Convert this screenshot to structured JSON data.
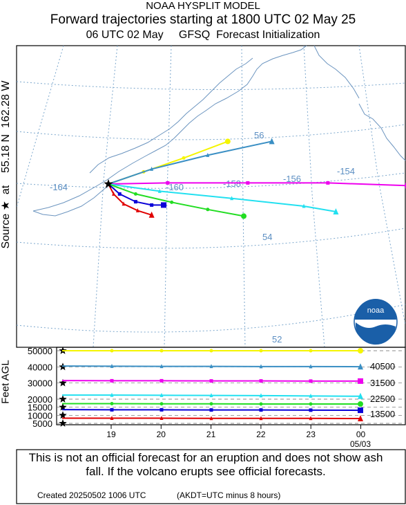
{
  "header": {
    "title": "NOAA HYSPLIT MODEL",
    "subtitle": "Forward trajectories starting at 1800 UTC 02 May 25",
    "init_line": "06 UTC 02 May     GFSQ  Forecast Initialization"
  },
  "source_label": "Source ★  at    55.18 N  162.28 W",
  "map": {
    "lon_labels": [
      "-164",
      "-160",
      "-158",
      "-156",
      "-154"
    ],
    "lat_labels": [
      "56",
      "54",
      "52"
    ],
    "logo_text": "noaa"
  },
  "chart_data": {
    "type": "line",
    "ylabel": "Feet AGL",
    "y_ticks": [
      5000,
      10000,
      15000,
      20000,
      30000,
      40000,
      50000
    ],
    "ylim": [
      5000,
      50000
    ],
    "x_ticks": [
      "19",
      "20",
      "21",
      "22",
      "23",
      "00"
    ],
    "x_sublabel": "05/03",
    "right_labels": [
      "40500",
      "31500",
      "22500",
      "13500"
    ],
    "series": [
      {
        "color": "#f5f500",
        "marker": "circle",
        "values": [
          50000,
          50000,
          50000,
          50000,
          50000,
          50000,
          50000
        ]
      },
      {
        "color": "#3a8fc4",
        "marker": "triangle",
        "values": [
          40500,
          40400,
          40300,
          40300,
          40200,
          40200,
          40100
        ]
      },
      {
        "color": "#ee00ee",
        "marker": "square",
        "values": [
          31500,
          31400,
          31400,
          31300,
          31300,
          31200,
          31200
        ]
      },
      {
        "color": "#22e0f0",
        "marker": "triangle",
        "values": [
          22500,
          22500,
          22400,
          22300,
          22200,
          22000,
          21800
        ]
      },
      {
        "color": "#22dd22",
        "marker": "circle",
        "values": [
          17200,
          17200,
          17100,
          17100,
          17000,
          17000,
          17000
        ]
      },
      {
        "color": "#0a00d8",
        "marker": "square",
        "values": [
          13500,
          13400,
          13400,
          13300,
          13300,
          13200,
          13100
        ]
      },
      {
        "color": "#e00000",
        "marker": "triangle",
        "values": [
          8200,
          8200,
          8200,
          8100,
          8100,
          8100,
          8000
        ]
      }
    ]
  },
  "trajectories": [
    {
      "color": "#f5f500",
      "marker": "circle",
      "lon": [
        -162.28,
        -161.4,
        -160.4,
        -159.3
      ],
      "lat": [
        55.18,
        55.4,
        55.65,
        55.95
      ]
    },
    {
      "color": "#3a8fc4",
      "marker": "triangle",
      "lon": [
        -162.28,
        -161.2,
        -159.8,
        -158.2
      ],
      "lat": [
        55.18,
        55.45,
        55.7,
        55.95
      ]
    },
    {
      "color": "#ee00ee",
      "marker": "square",
      "lon": [
        -162.28,
        -160.8,
        -158.8,
        -156.8,
        -154.8
      ],
      "lat": [
        55.18,
        55.2,
        55.2,
        55.2,
        55.15
      ]
    },
    {
      "color": "#22e0f0",
      "marker": "triangle",
      "lon": [
        -162.28,
        -161.0,
        -159.2,
        -157.4,
        -156.6
      ],
      "lat": [
        55.18,
        55.05,
        54.92,
        54.78,
        54.68
      ]
    },
    {
      "color": "#22dd22",
      "marker": "circle",
      "lon": [
        -162.28,
        -161.6,
        -160.7,
        -159.8,
        -158.9
      ],
      "lat": [
        55.18,
        55.0,
        54.85,
        54.72,
        54.6
      ]
    },
    {
      "color": "#0a00d8",
      "marker": "square",
      "lon": [
        -162.28,
        -162.0,
        -161.6,
        -161.2,
        -160.9
      ],
      "lat": [
        55.18,
        55.0,
        54.86,
        54.8,
        54.8
      ]
    },
    {
      "color": "#e00000",
      "marker": "triangle",
      "lon": [
        -162.28,
        -162.15,
        -161.9,
        -161.55,
        -161.2
      ],
      "lat": [
        55.18,
        55.0,
        54.82,
        54.7,
        54.62
      ]
    }
  ],
  "disclaimer": "This is not an official forecast for an eruption and does not show ash fall. If the volcano erupts see official forecasts.",
  "footer": {
    "created": "Created 20250502 1006 UTC",
    "tz_note": "(AKDT=UTC minus 8 hours)"
  }
}
